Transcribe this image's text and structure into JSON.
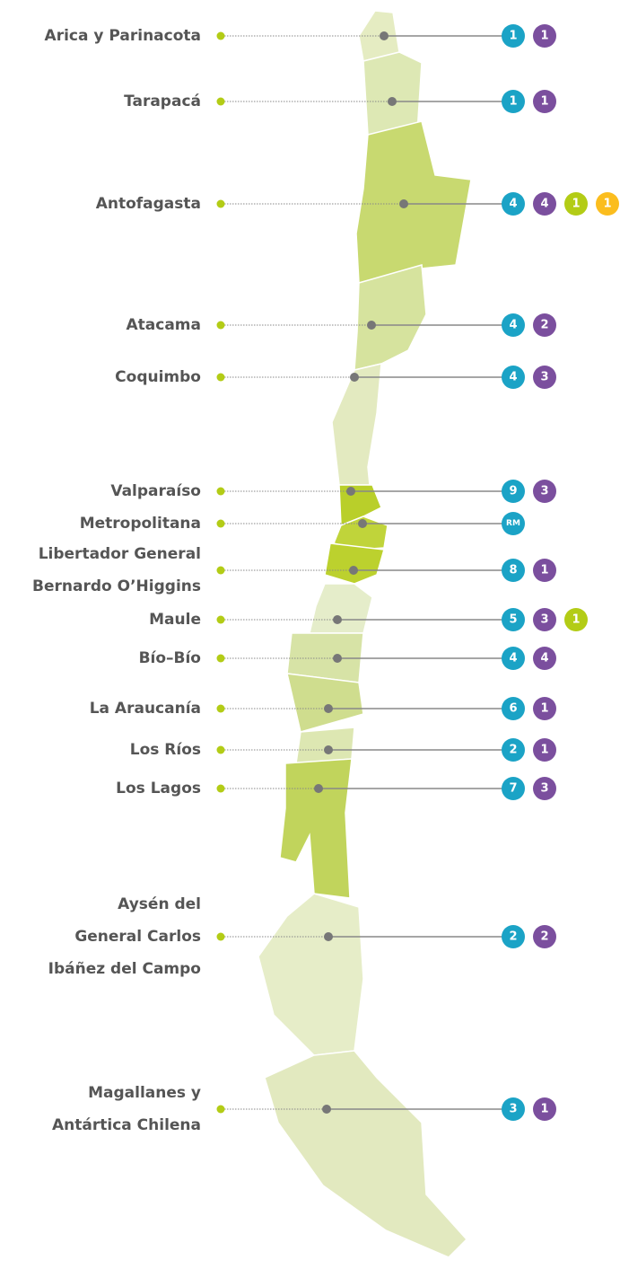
{
  "regions": [
    {
      "name": [
        "Arica y Parinacota"
      ],
      "badges": [
        {
          "value": 1,
          "color": "#1ba3c6"
        },
        {
          "value": 1,
          "color": "#7b4f9e"
        }
      ]
    },
    {
      "name": [
        "Tarapacá"
      ],
      "badges": [
        {
          "value": 1,
          "color": "#1ba3c6"
        },
        {
          "value": 1,
          "color": "#7b4f9e"
        }
      ]
    },
    {
      "name": [
        "Antofagasta"
      ],
      "badges": [
        {
          "value": 4,
          "color": "#1ba3c6"
        },
        {
          "value": 4,
          "color": "#7b4f9e"
        },
        {
          "value": 1,
          "color": "#b3cc16"
        },
        {
          "value": 1,
          "color": "#fbbd1e"
        }
      ]
    },
    {
      "name": [
        "Atacama"
      ],
      "badges": [
        {
          "value": 4,
          "color": "#1ba3c6"
        },
        {
          "value": 2,
          "color": "#7b4f9e"
        }
      ]
    },
    {
      "name": [
        "Coquimbo"
      ],
      "badges": [
        {
          "value": 4,
          "color": "#1ba3c6"
        },
        {
          "value": 3,
          "color": "#7b4f9e"
        }
      ]
    },
    {
      "name": [
        "Valparaíso"
      ],
      "badges": [
        {
          "value": 9,
          "color": "#1ba3c6"
        },
        {
          "value": 3,
          "color": "#7b4f9e"
        }
      ]
    },
    {
      "name": [
        "Metropolitana"
      ],
      "badges": [
        {
          "value": "RM",
          "color": "#1ba3c6"
        }
      ]
    },
    {
      "name": [
        "Libertador General",
        "Bernardo O’Higgins"
      ],
      "badges": [
        {
          "value": 8,
          "color": "#1ba3c6"
        },
        {
          "value": 1,
          "color": "#7b4f9e"
        }
      ]
    },
    {
      "name": [
        "Maule"
      ],
      "badges": [
        {
          "value": 5,
          "color": "#1ba3c6"
        },
        {
          "value": 3,
          "color": "#7b4f9e"
        },
        {
          "value": 1,
          "color": "#b3cc16"
        }
      ]
    },
    {
      "name": [
        "Bío–Bío"
      ],
      "badges": [
        {
          "value": 4,
          "color": "#1ba3c6"
        },
        {
          "value": 4,
          "color": "#7b4f9e"
        }
      ]
    },
    {
      "name": [
        "La Araucanía"
      ],
      "badges": [
        {
          "value": 6,
          "color": "#1ba3c6"
        },
        {
          "value": 1,
          "color": "#7b4f9e"
        }
      ]
    },
    {
      "name": [
        "Los Ríos"
      ],
      "badges": [
        {
          "value": 2,
          "color": "#1ba3c6"
        },
        {
          "value": 1,
          "color": "#7b4f9e"
        }
      ]
    },
    {
      "name": [
        "Los Lagos"
      ],
      "badges": [
        {
          "value": 7,
          "color": "#1ba3c6"
        },
        {
          "value": 3,
          "color": "#7b4f9e"
        }
      ]
    },
    {
      "name": [
        "Aysén del",
        "General Carlos",
        "Ibáñez del Campo"
      ],
      "badges": [
        {
          "value": 2,
          "color": "#1ba3c6"
        },
        {
          "value": 2,
          "color": "#7b4f9e"
        }
      ]
    },
    {
      "name": [
        "Magallanes y",
        "Antártica Chilena"
      ],
      "badges": [
        {
          "value": 3,
          "color": "#1ba3c6"
        },
        {
          "value": 1,
          "color": "#7b4f9e"
        }
      ]
    }
  ]
}
